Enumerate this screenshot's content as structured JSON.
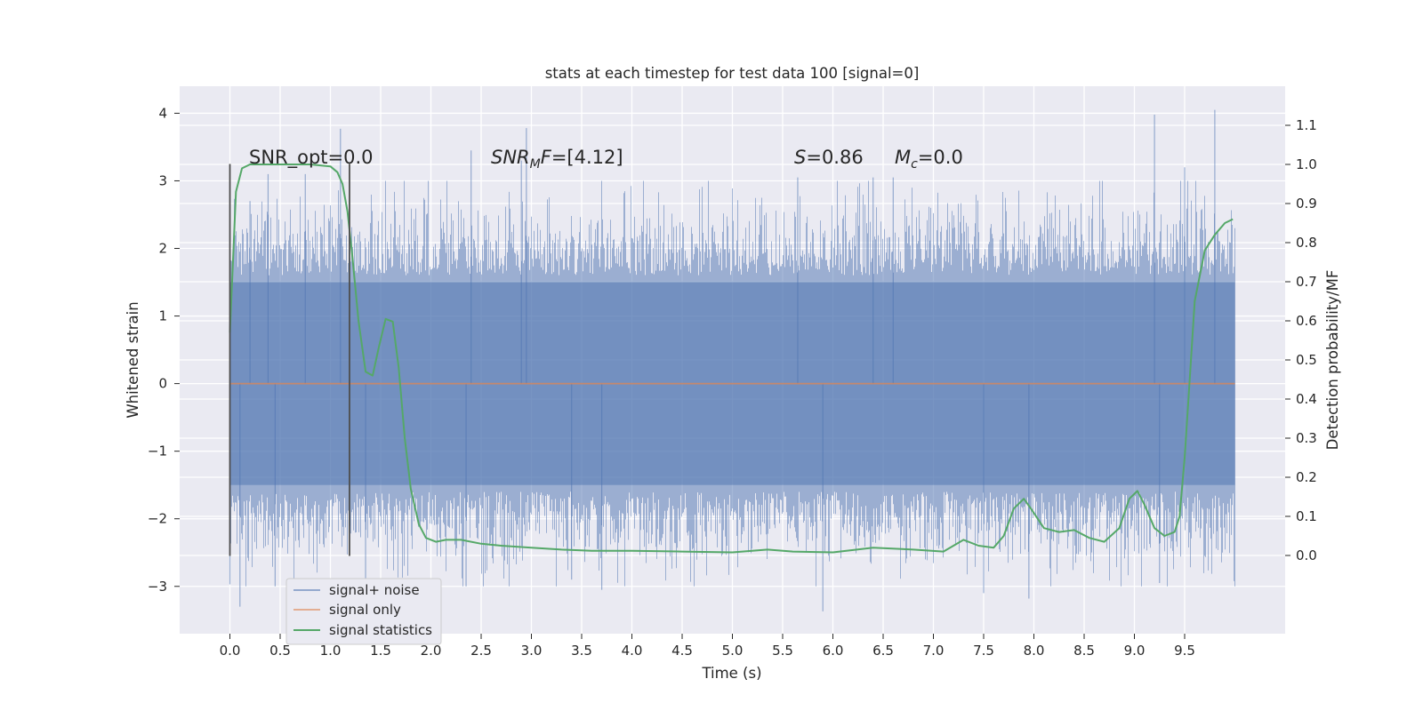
{
  "chart_data": {
    "type": "line",
    "title": "stats at each timestep for test data 100 [signal=0]",
    "xlabel": "Time (s)",
    "ylabel_left": "Whitened strain",
    "ylabel_right": "Detection probability/MF",
    "xlim": [
      -0.5,
      10.5
    ],
    "ylim_left": [
      -3.7,
      4.4
    ],
    "ylim_right": [
      -0.2,
      1.2
    ],
    "x_ticks": [
      0.0,
      0.5,
      1.0,
      1.5,
      2.0,
      2.5,
      3.0,
      3.5,
      4.0,
      4.5,
      5.0,
      5.5,
      6.0,
      6.5,
      7.0,
      7.5,
      8.0,
      8.5,
      9.0,
      9.5
    ],
    "x_tick_labels": [
      "0.0",
      "0.5",
      "1.0",
      "1.5",
      "2.0",
      "2.5",
      "3.0",
      "3.5",
      "4.0",
      "4.5",
      "5.0",
      "5.5",
      "6.0",
      "6.5",
      "7.0",
      "7.5",
      "8.0",
      "8.5",
      "9.0",
      "9.5"
    ],
    "y_left_ticks": [
      -3,
      -2,
      -1,
      0,
      1,
      2,
      3,
      4
    ],
    "y_left_tick_labels": [
      "−3",
      "−2",
      "−1",
      "0",
      "1",
      "2",
      "3",
      "4"
    ],
    "y_right_ticks": [
      0.0,
      0.1,
      0.2,
      0.3,
      0.4,
      0.5,
      0.6,
      0.7,
      0.8,
      0.9,
      1.0,
      1.1
    ],
    "y_right_tick_labels": [
      "0.0",
      "0.1",
      "0.2",
      "0.3",
      "0.4",
      "0.5",
      "0.6",
      "0.7",
      "0.8",
      "0.9",
      "1.0",
      "1.1"
    ],
    "grid": true,
    "legend_position": "lower-left",
    "series": [
      {
        "name": "signal+ noise",
        "axis": "left",
        "color": "#4c72b0",
        "kind": "noise",
        "x_range": [
          0.0,
          10.0
        ],
        "bulk_range": [
          -1.5,
          1.5
        ],
        "spikes": [
          {
            "x": 0.0,
            "y": -2.97
          },
          {
            "x": 0.1,
            "y": -3.3
          },
          {
            "x": 0.2,
            "y": 2.7
          },
          {
            "x": 0.38,
            "y": 3.1
          },
          {
            "x": 0.45,
            "y": -3.0
          },
          {
            "x": 0.75,
            "y": 3.1
          },
          {
            "x": 1.1,
            "y": 3.77
          },
          {
            "x": 1.35,
            "y": -2.9
          },
          {
            "x": 2.4,
            "y": 3.45
          },
          {
            "x": 2.35,
            "y": -3.0
          },
          {
            "x": 2.9,
            "y": 3.3
          },
          {
            "x": 2.95,
            "y": 3.78
          },
          {
            "x": 3.4,
            "y": -2.9
          },
          {
            "x": 3.7,
            "y": -3.05
          },
          {
            "x": 5.65,
            "y": 3.05
          },
          {
            "x": 5.9,
            "y": -3.37
          },
          {
            "x": 6.4,
            "y": 3.05
          },
          {
            "x": 6.6,
            "y": 3.05
          },
          {
            "x": 7.5,
            "y": -3.1
          },
          {
            "x": 7.95,
            "y": -3.18
          },
          {
            "x": 9.2,
            "y": 3.98
          },
          {
            "x": 9.25,
            "y": -2.95
          },
          {
            "x": 9.8,
            "y": 4.05
          },
          {
            "x": 9.5,
            "y": 3.2
          }
        ]
      },
      {
        "name": "signal only",
        "axis": "left",
        "color": "#dd8452",
        "x": [
          0.0,
          10.0
        ],
        "y": [
          0.0,
          0.0
        ]
      },
      {
        "name": "signal statistics",
        "axis": "right",
        "color": "#55a868",
        "x": [
          0.0,
          0.06,
          0.12,
          0.2,
          0.3,
          0.5,
          0.8,
          1.0,
          1.07,
          1.12,
          1.17,
          1.22,
          1.28,
          1.35,
          1.42,
          1.48,
          1.55,
          1.62,
          1.68,
          1.74,
          1.8,
          1.88,
          1.95,
          2.05,
          2.15,
          2.3,
          2.5,
          2.7,
          3.0,
          3.3,
          3.6,
          4.0,
          4.5,
          5.0,
          5.35,
          5.6,
          6.0,
          6.4,
          6.8,
          7.1,
          7.3,
          7.45,
          7.6,
          7.7,
          7.8,
          7.9,
          7.97,
          8.1,
          8.25,
          8.4,
          8.55,
          8.7,
          8.85,
          8.95,
          9.03,
          9.1,
          9.2,
          9.3,
          9.4,
          9.45,
          9.5,
          9.55,
          9.6,
          9.7,
          9.8,
          9.9,
          9.98
        ],
        "y": [
          0.57,
          0.93,
          0.99,
          1.0,
          1.0,
          1.0,
          1.0,
          0.995,
          0.98,
          0.95,
          0.88,
          0.76,
          0.6,
          0.47,
          0.46,
          0.53,
          0.605,
          0.598,
          0.48,
          0.3,
          0.17,
          0.08,
          0.045,
          0.035,
          0.04,
          0.04,
          0.03,
          0.025,
          0.02,
          0.015,
          0.012,
          0.012,
          0.01,
          0.008,
          0.015,
          0.01,
          0.008,
          0.02,
          0.015,
          0.01,
          0.04,
          0.025,
          0.02,
          0.05,
          0.12,
          0.145,
          0.12,
          0.07,
          0.06,
          0.065,
          0.045,
          0.035,
          0.07,
          0.145,
          0.165,
          0.13,
          0.07,
          0.05,
          0.06,
          0.1,
          0.25,
          0.45,
          0.65,
          0.78,
          0.82,
          0.85,
          0.86
        ]
      }
    ],
    "vertical_lines": [
      {
        "x": 0.0,
        "y_range": [
          -2.55,
          3.25
        ],
        "color": "#4d4d4d"
      },
      {
        "x": 1.19,
        "y_range": [
          -2.55,
          3.25
        ],
        "color": "#4d4d4d"
      }
    ],
    "annotations": [
      {
        "id": "snr_opt",
        "text": "SNR_opt=0.0",
        "x": 0.2,
        "y": 3.2
      },
      {
        "id": "snr_mf",
        "text": "SNR_MF=[4.12]",
        "x": 2.6,
        "y": 3.2
      },
      {
        "id": "s_stat",
        "text": "S=0.86",
        "x": 5.6,
        "y": 3.2
      },
      {
        "id": "mc",
        "text": "M_c=0.0",
        "x": 6.6,
        "y": 3.2
      }
    ]
  },
  "annotation_text": {
    "snr_opt": "SNR_opt=0.0",
    "snr_mf_main": "SNR",
    "snr_mf_sub": "M",
    "snr_mf_rest": "F",
    "snr_mf_value": "=[4.12]",
    "s_label": "S",
    "s_value": "=0.86",
    "mc_label": "M",
    "mc_sub": "c",
    "mc_value": "=0.0"
  },
  "legend": {
    "items": [
      "signal+ noise",
      "signal only",
      "signal statistics"
    ]
  }
}
